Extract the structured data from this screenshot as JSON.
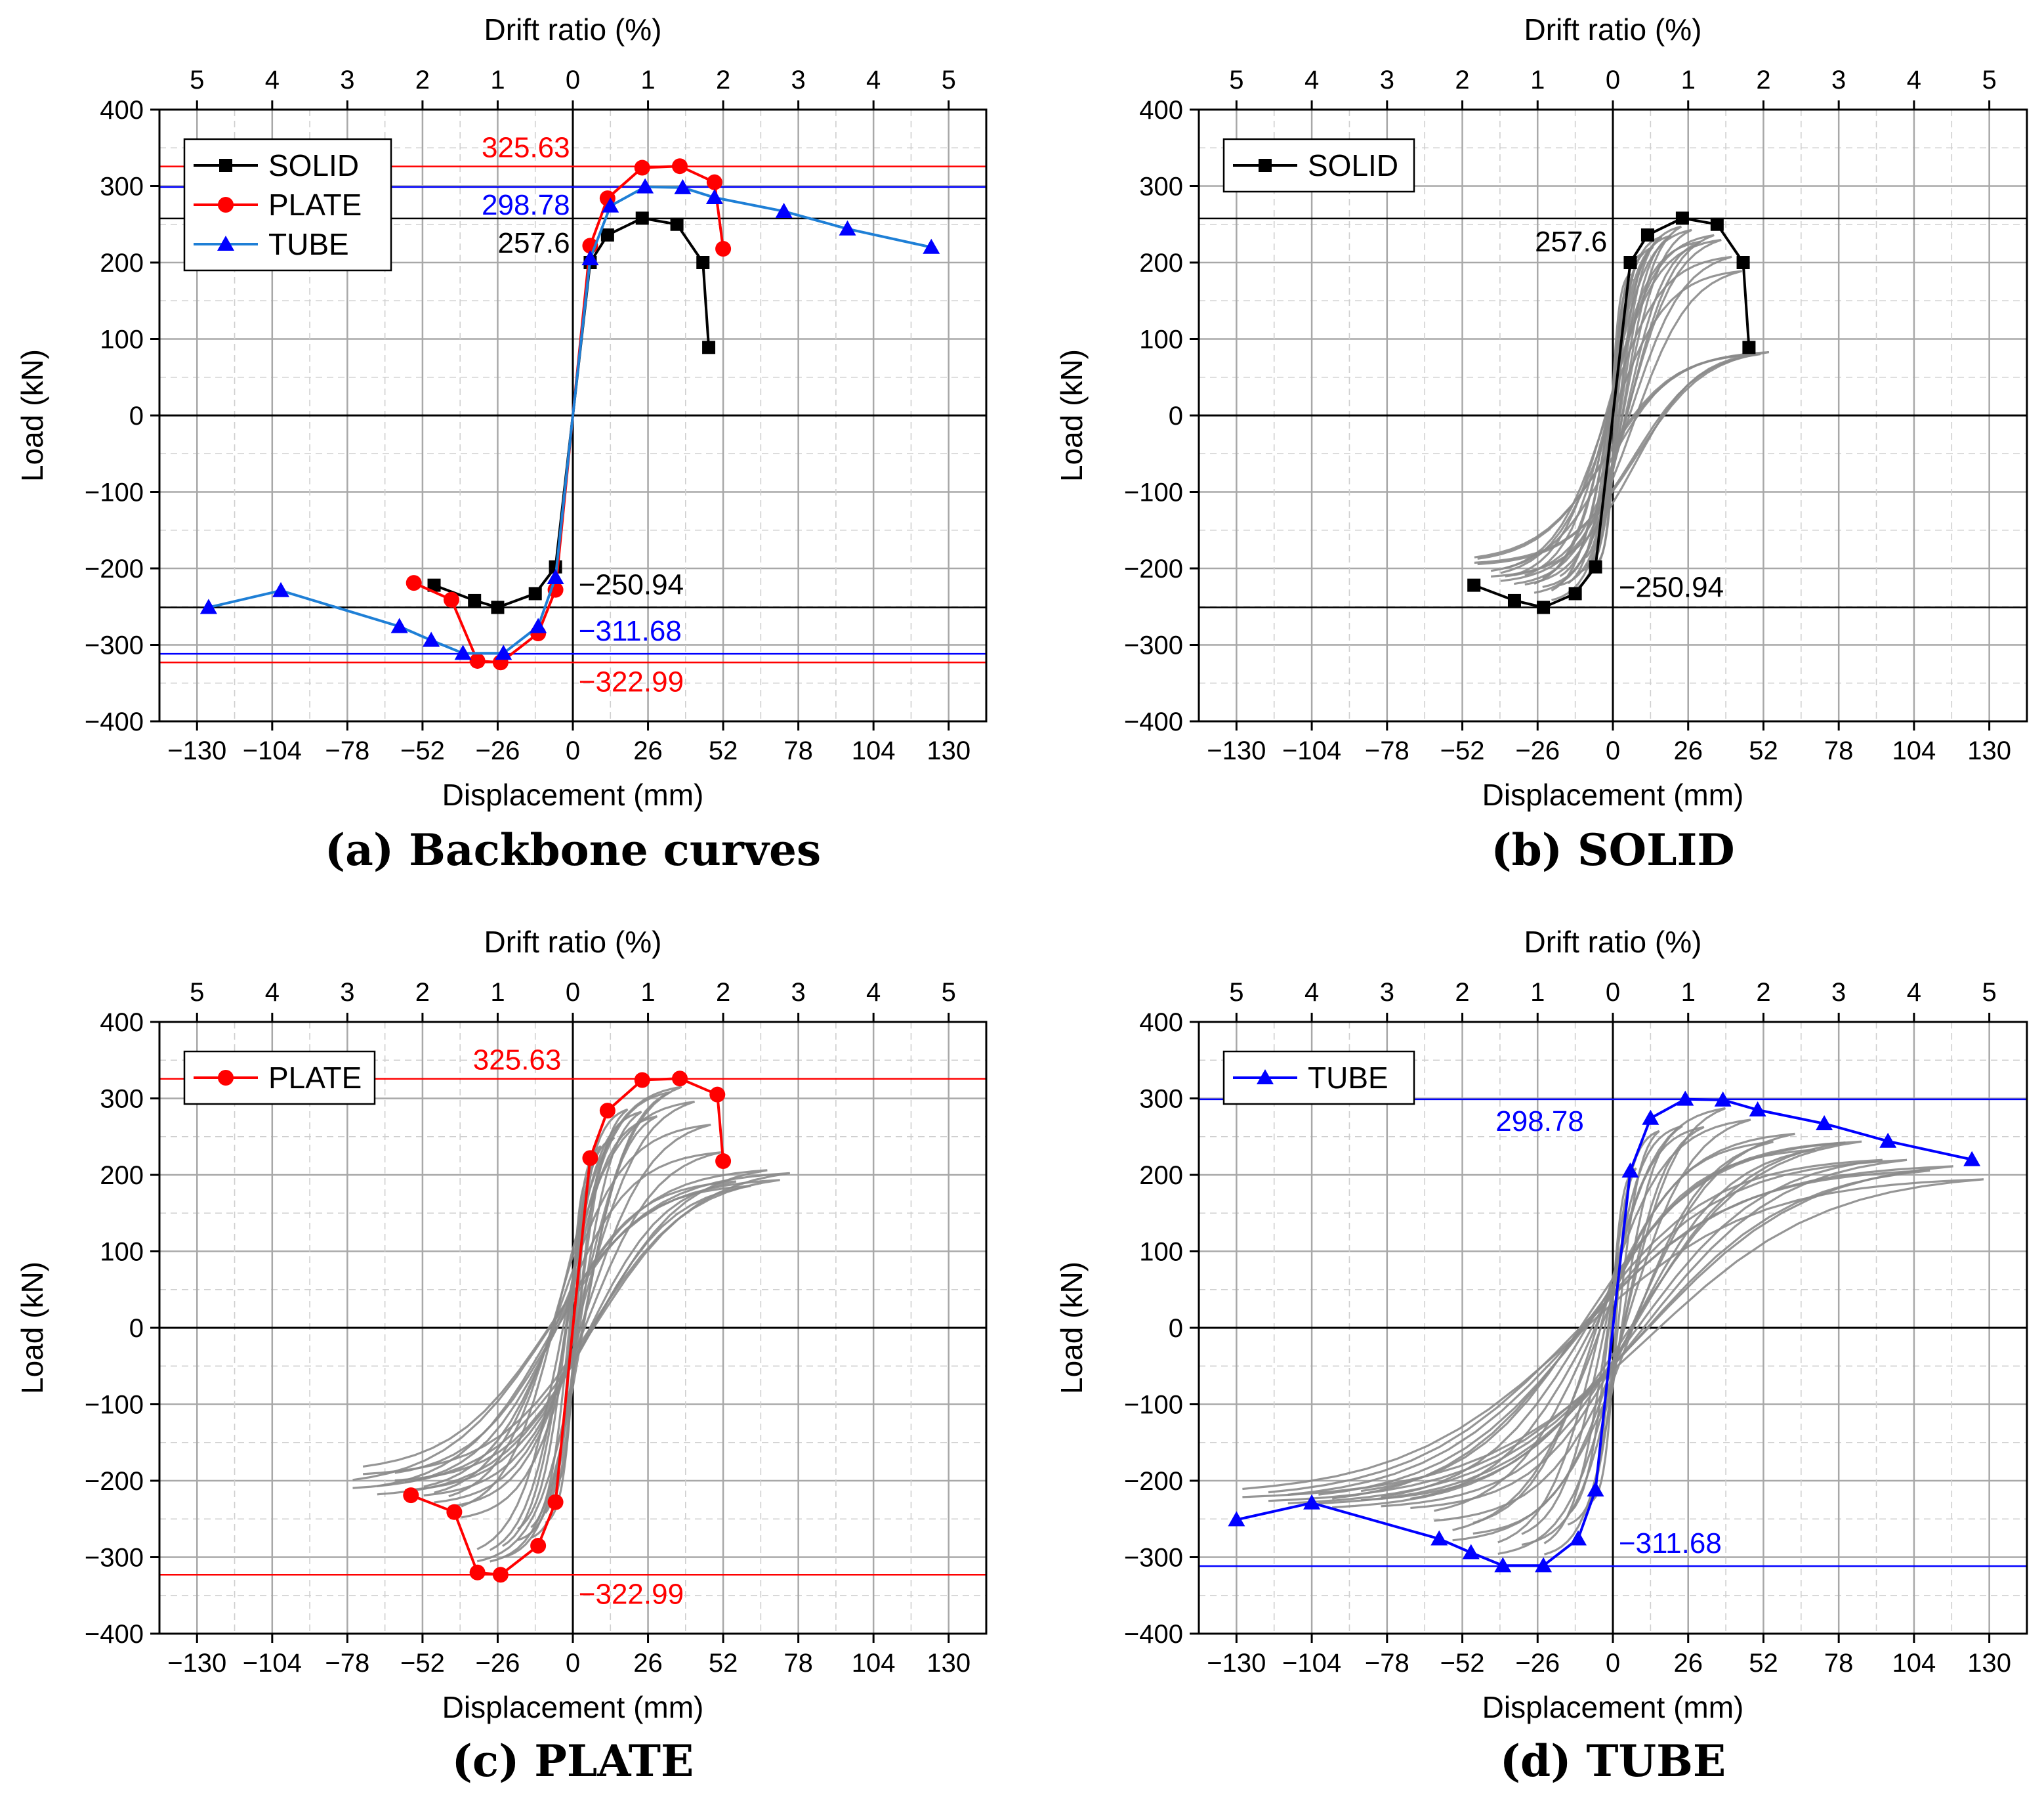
{
  "chart_data": [
    {
      "type": "line",
      "panel": "a",
      "caption": "(a) Backbone curves",
      "xlabel": "Displacement (mm)",
      "ylabel": "Load (kN)",
      "x2label": "Drift ratio (%)",
      "xlim": [
        -143,
        143
      ],
      "ylim": [
        -400,
        400
      ],
      "xticks": [
        "-130",
        "-104",
        "-78",
        "-52",
        "-26",
        "0",
        "26",
        "52",
        "78",
        "104",
        "130"
      ],
      "yticks": [
        "-400",
        "-300",
        "-200",
        "-100",
        "0",
        "100",
        "200",
        "300",
        "400"
      ],
      "x2ticks": [
        "5",
        "4",
        "3",
        "2",
        "1",
        "0",
        "1",
        "2",
        "3",
        "4",
        "5"
      ],
      "grid": true,
      "legend": "top-left",
      "series": [
        {
          "name": "SOLID",
          "color": "#000000",
          "marker": "square",
          "x": [
            -48,
            -34,
            -26,
            -13,
            -6,
            0,
            6,
            12,
            24,
            36,
            45,
            47
          ],
          "y": [
            -222,
            -242,
            -251,
            -233,
            -198,
            0,
            200,
            236,
            258,
            250,
            200,
            89
          ]
        },
        {
          "name": "PLATE",
          "color": "#ff0000",
          "marker": "circle",
          "x": [
            -55,
            -42,
            -33,
            -25,
            -12,
            -6,
            0,
            6,
            12,
            24,
            37,
            49,
            52
          ],
          "y": [
            -219,
            -241,
            -321,
            -323,
            -285,
            -228,
            0,
            222,
            284,
            324,
            326,
            305,
            218
          ]
        },
        {
          "name": "TUBE",
          "color": "#1e7fd6",
          "marker": "triangle",
          "x": [
            -126,
            -101,
            -60,
            -49,
            -38,
            -24,
            -12,
            -6,
            0,
            6,
            13,
            25,
            38,
            49,
            73,
            95,
            124
          ],
          "y": [
            -251,
            -229,
            -276,
            -294,
            -311,
            -311,
            -276,
            -212,
            0,
            205,
            274,
            299,
            298,
            285,
            267,
            244,
            220
          ]
        }
      ],
      "reference_lines": [
        {
          "value": 325.63,
          "label": "325.63",
          "color": "#ff0000"
        },
        {
          "value": 298.78,
          "label": "298.78",
          "color": "#0000ff"
        },
        {
          "value": 257.6,
          "label": "257.6",
          "color": "#000000"
        },
        {
          "value": -250.94,
          "label": "−250.94",
          "color": "#000000"
        },
        {
          "value": -311.68,
          "label": "−311.68",
          "color": "#0000ff"
        },
        {
          "value": -322.99,
          "label": "−322.99",
          "color": "#ff0000"
        }
      ]
    },
    {
      "type": "line",
      "panel": "b",
      "caption": "(b) SOLID",
      "xlabel": "Displacement (mm)",
      "ylabel": "Load (kN)",
      "x2label": "Drift ratio (%)",
      "xlim": [
        -143,
        143
      ],
      "ylim": [
        -400,
        400
      ],
      "xticks": [
        "-130",
        "-104",
        "-78",
        "-52",
        "-26",
        "0",
        "26",
        "52",
        "78",
        "104",
        "130"
      ],
      "yticks": [
        "-400",
        "-300",
        "-200",
        "-100",
        "0",
        "100",
        "200",
        "300",
        "400"
      ],
      "x2ticks": [
        "5",
        "4",
        "3",
        "2",
        "1",
        "0",
        "1",
        "2",
        "3",
        "4",
        "5"
      ],
      "grid": true,
      "legend": "top-left",
      "hysteresis_amplitudes_mm": [
        -50,
        56
      ],
      "series": [
        {
          "name": "SOLID",
          "color": "#000000",
          "marker": "square",
          "x": [
            -48,
            -34,
            -24,
            -13,
            -6,
            0,
            6,
            12,
            24,
            36,
            45,
            47
          ],
          "y": [
            -222,
            -242,
            -251,
            -233,
            -198,
            0,
            200,
            236,
            258,
            250,
            200,
            89
          ]
        }
      ],
      "reference_lines": [
        {
          "value": 257.6,
          "label": "257.6",
          "color": "#000000"
        },
        {
          "value": -250.94,
          "label": "−250.94",
          "color": "#000000"
        }
      ]
    },
    {
      "type": "line",
      "panel": "c",
      "caption": "(c) PLATE",
      "xlabel": "Displacement (mm)",
      "ylabel": "Load (kN)",
      "x2label": "Drift ratio (%)",
      "xlim": [
        -143,
        143
      ],
      "ylim": [
        -400,
        400
      ],
      "xticks": [
        "-130",
        "-104",
        "-78",
        "-52",
        "-26",
        "0",
        "26",
        "52",
        "78",
        "104",
        "130"
      ],
      "yticks": [
        "-400",
        "-300",
        "-200",
        "-100",
        "0",
        "100",
        "200",
        "300",
        "400"
      ],
      "x2ticks": [
        "5",
        "4",
        "3",
        "2",
        "1",
        "0",
        "1",
        "2",
        "3",
        "4",
        "5"
      ],
      "grid": true,
      "legend": "top-left",
      "hysteresis_amplitudes_mm": [
        -78,
        78
      ],
      "series": [
        {
          "name": "PLATE",
          "color": "#ff0000",
          "marker": "circle",
          "x": [
            -56,
            -41,
            -33,
            -25,
            -12,
            -6,
            0,
            6,
            12,
            24,
            37,
            50,
            52
          ],
          "y": [
            -219,
            -241,
            -320,
            -323,
            -285,
            -228,
            0,
            222,
            284,
            324,
            326,
            305,
            218
          ]
        }
      ],
      "reference_lines": [
        {
          "value": 325.63,
          "label": "325.63",
          "color": "#ff0000"
        },
        {
          "value": -322.99,
          "label": "−322.99",
          "color": "#ff0000"
        }
      ]
    },
    {
      "type": "line",
      "panel": "d",
      "caption": "(d) TUBE",
      "xlabel": "Displacement (mm)",
      "ylabel": "Load (kN)",
      "x2label": "Drift ratio (%)",
      "xlim": [
        -143,
        143
      ],
      "ylim": [
        -400,
        400
      ],
      "xticks": [
        "-130",
        "-104",
        "-78",
        "-52",
        "-26",
        "0",
        "26",
        "52",
        "78",
        "104",
        "130"
      ],
      "yticks": [
        "-400",
        "-300",
        "-200",
        "-100",
        "0",
        "100",
        "200",
        "300",
        "400"
      ],
      "x2ticks": [
        "5",
        "4",
        "3",
        "2",
        "1",
        "0",
        "1",
        "2",
        "3",
        "4",
        "5"
      ],
      "grid": true,
      "legend": "top-left",
      "hysteresis_amplitudes_mm": [
        -130,
        130
      ],
      "series": [
        {
          "name": "TUBE",
          "color": "#0000ff",
          "marker": "triangle",
          "x": [
            -130,
            -104,
            -60,
            -49,
            -38,
            -24,
            -12,
            -6,
            0,
            6,
            13,
            25,
            38,
            50,
            73,
            95,
            124
          ],
          "y": [
            -251,
            -229,
            -276,
            -294,
            -311,
            -311,
            -276,
            -212,
            0,
            205,
            274,
            299,
            298,
            285,
            267,
            244,
            220
          ]
        }
      ],
      "reference_lines": [
        {
          "value": 298.78,
          "label": "298.78",
          "color": "#0000ff"
        },
        {
          "value": -311.68,
          "label": "−311.68",
          "color": "#0000ff"
        }
      ]
    }
  ]
}
